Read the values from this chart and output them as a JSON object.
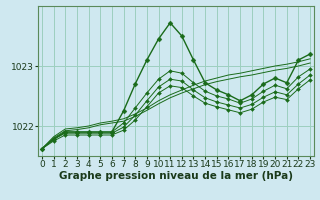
{
  "background_color": "#cfe8f0",
  "grid_color": "#9dcfbf",
  "line_color": "#1a6b1a",
  "marker_color": "#1a6b1a",
  "xlabel": "Graphe pression niveau de la mer (hPa)",
  "xlabel_fontsize": 7.5,
  "tick_fontsize": 6.5,
  "yticks": [
    1022,
    1023
  ],
  "xticks": [
    0,
    1,
    2,
    3,
    4,
    5,
    6,
    7,
    8,
    9,
    10,
    11,
    12,
    13,
    14,
    15,
    16,
    17,
    18,
    19,
    20,
    21,
    22,
    23
  ],
  "xlim": [
    -0.3,
    23.3
  ],
  "ylim": [
    1021.5,
    1024.0
  ],
  "series": [
    [
      1021.62,
      1021.78,
      1021.9,
      1021.9,
      1021.9,
      1021.9,
      1021.9,
      1022.25,
      1022.7,
      1023.1,
      1023.45,
      1023.72,
      1023.5,
      1023.1,
      1022.72,
      1022.6,
      1022.52,
      1022.42,
      1022.52,
      1022.7,
      1022.8,
      1022.72,
      1023.1,
      1023.2
    ],
    [
      1021.62,
      1021.78,
      1021.9,
      1021.9,
      1021.9,
      1021.9,
      1021.9,
      1022.05,
      1022.3,
      1022.55,
      1022.78,
      1022.92,
      1022.88,
      1022.72,
      1022.58,
      1022.5,
      1022.45,
      1022.38,
      1022.45,
      1022.58,
      1022.68,
      1022.62,
      1022.82,
      1022.95
    ],
    [
      1021.62,
      1021.78,
      1021.88,
      1021.88,
      1021.88,
      1021.88,
      1021.88,
      1021.98,
      1022.18,
      1022.42,
      1022.65,
      1022.78,
      1022.75,
      1022.6,
      1022.47,
      1022.4,
      1022.35,
      1022.3,
      1022.36,
      1022.48,
      1022.57,
      1022.52,
      1022.7,
      1022.85
    ],
    [
      1021.62,
      1021.75,
      1021.85,
      1021.85,
      1021.85,
      1021.85,
      1021.85,
      1021.93,
      1022.1,
      1022.32,
      1022.55,
      1022.67,
      1022.64,
      1022.5,
      1022.38,
      1022.32,
      1022.27,
      1022.22,
      1022.28,
      1022.4,
      1022.48,
      1022.44,
      1022.62,
      1022.77
    ]
  ],
  "linear_series": [
    [
      1021.62,
      1021.82,
      1021.95,
      1021.97,
      1022.0,
      1022.05,
      1022.08,
      1022.12,
      1022.2,
      1022.3,
      1022.42,
      1022.52,
      1022.6,
      1022.68,
      1022.75,
      1022.8,
      1022.85,
      1022.88,
      1022.92,
      1022.96,
      1023.0,
      1023.03,
      1023.07,
      1023.12
    ],
    [
      1021.62,
      1021.8,
      1021.92,
      1021.94,
      1021.97,
      1022.02,
      1022.05,
      1022.08,
      1022.16,
      1022.26,
      1022.37,
      1022.47,
      1022.55,
      1022.62,
      1022.69,
      1022.74,
      1022.78,
      1022.82,
      1022.85,
      1022.89,
      1022.93,
      1022.96,
      1023.0,
      1023.05
    ]
  ]
}
